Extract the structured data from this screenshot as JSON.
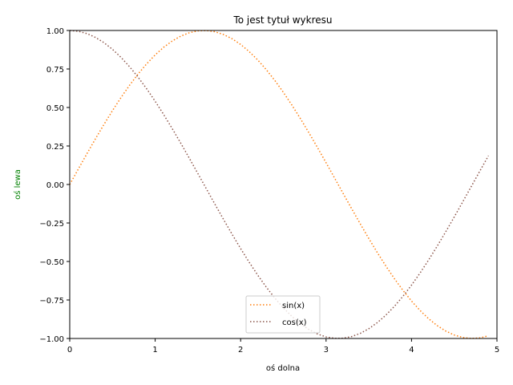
{
  "chart_data": {
    "type": "line",
    "title": "To jest tytuł wykresu",
    "xlabel": "oś dolna",
    "ylabel": "oś lewa",
    "ylabel_color": "#008000",
    "xlim": [
      0,
      5
    ],
    "ylim": [
      -1,
      1
    ],
    "xticks": [
      0,
      1,
      2,
      3,
      4,
      5
    ],
    "xtick_labels": [
      "0",
      "1",
      "2",
      "3",
      "4",
      "5"
    ],
    "yticks": [
      -1,
      -0.75,
      -0.5,
      -0.25,
      0,
      0.25,
      0.5,
      0.75,
      1
    ],
    "ytick_labels": [
      "−1.00",
      "−0.75",
      "−0.50",
      "−0.25",
      "0.00",
      "0.25",
      "0.50",
      "0.75",
      "1.00"
    ],
    "grid": false,
    "legend": "bottom-center",
    "x": [
      0.0,
      0.1,
      0.2,
      0.3,
      0.4,
      0.5,
      0.6,
      0.7,
      0.8,
      0.9,
      1.0,
      1.1,
      1.2,
      1.3,
      1.4,
      1.5,
      1.6,
      1.7,
      1.8,
      1.9,
      2.0,
      2.1,
      2.2,
      2.3,
      2.4,
      2.5,
      2.6,
      2.7,
      2.8,
      2.9,
      3.0,
      3.1,
      3.2,
      3.3,
      3.4,
      3.5,
      3.6,
      3.7,
      3.8,
      3.9,
      4.0,
      4.1,
      4.2,
      4.3,
      4.4,
      4.5,
      4.6,
      4.7,
      4.8,
      4.9
    ],
    "series": [
      {
        "name": "sin(x)",
        "color": "#ff7f0e",
        "linestyle": "dotted",
        "values": [
          0.0,
          0.0998,
          0.1987,
          0.2955,
          0.3894,
          0.4794,
          0.5646,
          0.6442,
          0.7174,
          0.7833,
          0.8415,
          0.8912,
          0.932,
          0.9636,
          0.9854,
          0.9975,
          0.9996,
          0.9917,
          0.9738,
          0.9463,
          0.9093,
          0.8632,
          0.8085,
          0.7457,
          0.6755,
          0.5985,
          0.5155,
          0.4274,
          0.335,
          0.2392,
          0.1411,
          0.0416,
          -0.0584,
          -0.1577,
          -0.2555,
          -0.3508,
          -0.4425,
          -0.5298,
          -0.6119,
          -0.6878,
          -0.7568,
          -0.8183,
          -0.8716,
          -0.9162,
          -0.9516,
          -0.9775,
          -0.9937,
          -0.9999,
          -0.9962,
          -0.9825
        ]
      },
      {
        "name": "cos(x)",
        "color": "#8c564b",
        "linestyle": "dotted",
        "values": [
          1.0,
          0.995,
          0.9801,
          0.9553,
          0.9211,
          0.8776,
          0.8253,
          0.7648,
          0.6967,
          0.6216,
          0.5403,
          0.4536,
          0.3624,
          0.2675,
          0.17,
          0.0707,
          -0.0292,
          -0.1288,
          -0.2272,
          -0.3233,
          -0.4161,
          -0.5048,
          -0.5885,
          -0.6663,
          -0.7374,
          -0.8011,
          -0.8569,
          -0.9041,
          -0.9422,
          -0.971,
          -0.99,
          -0.9991,
          -0.9983,
          -0.9875,
          -0.9668,
          -0.9365,
          -0.8968,
          -0.8481,
          -0.791,
          -0.7259,
          -0.6536,
          -0.5748,
          -0.4903,
          -0.4008,
          -0.3073,
          -0.2108,
          -0.1122,
          -0.0124,
          0.0875,
          0.1865
        ]
      }
    ]
  }
}
